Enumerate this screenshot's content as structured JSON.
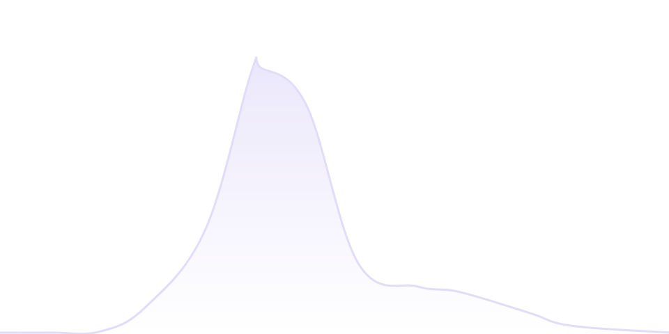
{
  "chart_data": {
    "type": "area",
    "title": "",
    "xlabel": "",
    "ylabel": "",
    "x": [
      0,
      7.8,
      15.1,
      21.9,
      30.7,
      37.5,
      39.1,
      45.8,
      53.6,
      62.5,
      68.8,
      79.2,
      85.4,
      100
    ],
    "series": [
      {
        "values": [
          0,
          0,
          0.5,
          10,
          39,
          98,
          100,
          86,
          26,
          17.4,
          15.3,
          7.4,
          2.6,
          0
        ]
      }
    ],
    "xlim": [
      0,
      100
    ],
    "ylim": [
      0,
      125.8
    ],
    "grid": false,
    "axes_visible": false,
    "legend": "none",
    "colors": {
      "stroke": "#e2dcf8",
      "fill_top": "#ebe7fb",
      "fill_bottom": "#ffffff"
    }
  }
}
